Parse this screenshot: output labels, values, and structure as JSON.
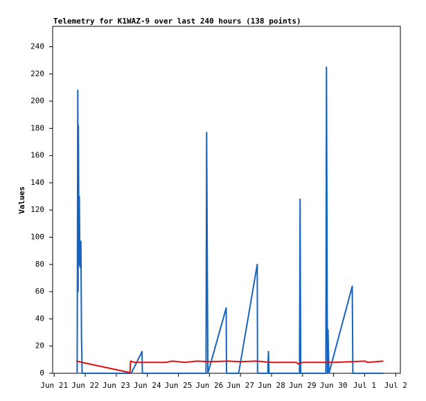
{
  "chart_data": {
    "type": "line",
    "title": "Telemetry for K1WAZ-9 over last 240 hours (138 points)",
    "y_label": "Values",
    "xlim": [
      -0.05,
      11.15
    ],
    "ylim": [
      0,
      255
    ],
    "xticks": [
      {
        "value": 0,
        "label": "Jun 21"
      },
      {
        "value": 1,
        "label": "Jun 22"
      },
      {
        "value": 2,
        "label": "Jun 23"
      },
      {
        "value": 3,
        "label": "Jun 24"
      },
      {
        "value": 4,
        "label": "Jun 25"
      },
      {
        "value": 5,
        "label": "Jun 26"
      },
      {
        "value": 6,
        "label": "Jun 27"
      },
      {
        "value": 7,
        "label": "Jun 28"
      },
      {
        "value": 8,
        "label": "Jun 29"
      },
      {
        "value": 9,
        "label": "Jun 30"
      },
      {
        "value": 10,
        "label": "Jul 1"
      },
      {
        "value": 11,
        "label": "Jul 2"
      }
    ],
    "yticks": [
      0,
      20,
      40,
      60,
      80,
      100,
      120,
      140,
      160,
      180,
      200,
      220,
      240
    ],
    "grid": false,
    "series": [
      {
        "color": "#1565c0",
        "x": [
          0.74,
          0.76,
          0.77,
          0.78,
          0.8,
          0.81,
          0.83,
          0.86,
          0.88,
          0.9,
          2.48,
          2.83,
          2.84,
          4.89,
          4.91,
          4.93,
          4.95,
          5.54,
          5.55,
          5.94,
          6.54,
          6.55,
          6.88,
          6.9,
          6.92,
          7.9,
          7.92,
          7.94,
          8.75,
          8.77,
          8.8,
          8.82,
          8.85,
          9.6,
          9.62,
          10.6
        ],
        "values": [
          0,
          208,
          60,
          182,
          80,
          130,
          78,
          97,
          26,
          0,
          0,
          16,
          0,
          0,
          177,
          88,
          0,
          48,
          0,
          0,
          80,
          0,
          0,
          16,
          0,
          0,
          128,
          0,
          0,
          225,
          0,
          32,
          0,
          64,
          0,
          0
        ]
      },
      {
        "color": "#e01010",
        "x": [
          0.71,
          0.9,
          2.44,
          2.46,
          2.6,
          3.0,
          3.6,
          3.8,
          4.2,
          4.6,
          5.0,
          5.6,
          6.0,
          6.5,
          7.0,
          7.5,
          7.8,
          7.85,
          8.0,
          8.5,
          9.0,
          9.6,
          10.0,
          10.1,
          10.6
        ],
        "values": [
          9,
          8,
          0.5,
          9,
          8,
          8,
          8,
          9,
          8,
          9,
          8.5,
          9,
          8.5,
          9,
          8,
          8,
          8,
          7,
          8,
          8,
          8,
          8.5,
          9,
          8,
          9
        ]
      }
    ]
  }
}
